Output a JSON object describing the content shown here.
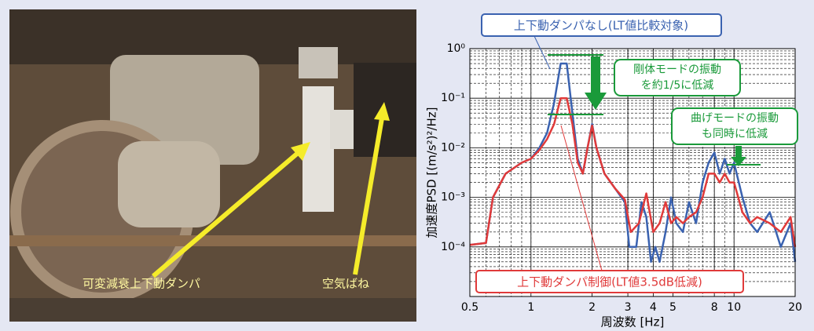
{
  "photo": {
    "labels": [
      "可変減衰上下動ダンパ",
      "空気ばね"
    ]
  },
  "chart_data": {
    "type": "line",
    "xlabel": "周波数 [Hz]",
    "ylabel": "加速度PSD [(m/s²)²/Hz]",
    "xlim": [
      0.5,
      20
    ],
    "ylim": [
      1e-05,
      1
    ],
    "log_x": true,
    "log_y": true,
    "grid": true,
    "xticks": [
      0.5,
      1,
      2,
      3,
      4,
      5,
      8,
      10,
      20
    ],
    "yticks": [
      {
        "value": 1,
        "label": "10⁰"
      },
      {
        "value": 0.1,
        "label": "10⁻¹"
      },
      {
        "value": 0.01,
        "label": "10⁻²"
      },
      {
        "value": 0.001,
        "label": "10⁻³"
      },
      {
        "value": 0.0001,
        "label": "10⁻⁴"
      }
    ],
    "series": [
      {
        "name": "上下動ダンパなし(LT値比較対象)",
        "color": "#3a62b0",
        "x": [
          0.5,
          0.6,
          0.65,
          0.75,
          0.9,
          1,
          1.1,
          1.2,
          1.3,
          1.4,
          1.5,
          1.6,
          1.7,
          1.8,
          1.9,
          2,
          2.1,
          2.3,
          2.6,
          2.9,
          3.05,
          3.3,
          3.5,
          3.7,
          3.9,
          4.1,
          4.3,
          4.6,
          4.9,
          5.2,
          5.6,
          6,
          6.5,
          7,
          7.5,
          8,
          8.5,
          9,
          9.5,
          10,
          11,
          12,
          13,
          15,
          17,
          19,
          20
        ],
        "values": [
          0.00011,
          0.00012,
          0.001,
          0.003,
          0.005,
          0.006,
          0.01,
          0.02,
          0.08,
          0.5,
          0.5,
          0.05,
          0.006,
          0.003,
          0.01,
          0.03,
          0.01,
          0.003,
          0.0015,
          0.0008,
          0.0001,
          0.0001,
          0.0008,
          0.0004,
          5e-05,
          0.0001,
          5e-05,
          0.0002,
          0.001,
          0.0003,
          0.0002,
          0.0008,
          0.0003,
          0.002,
          0.005,
          0.008,
          0.003,
          0.006,
          0.003,
          0.005,
          0.001,
          0.0003,
          0.0002,
          0.0005,
          0.0001,
          0.0003,
          5e-05
        ]
      },
      {
        "name": "上下動ダンパ制御(LT値3.5dB低減)",
        "color": "#e03a3a",
        "x": [
          0.5,
          0.6,
          0.65,
          0.75,
          0.9,
          1,
          1.1,
          1.2,
          1.3,
          1.4,
          1.5,
          1.6,
          1.7,
          1.8,
          1.9,
          2,
          2.1,
          2.3,
          2.6,
          2.9,
          3.1,
          3.4,
          3.7,
          4,
          4.3,
          4.6,
          4.9,
          5.2,
          5.6,
          6,
          6.5,
          7,
          7.5,
          8,
          8.5,
          9,
          9.5,
          10,
          11,
          12,
          13,
          15,
          17,
          19,
          20
        ],
        "values": [
          0.00011,
          0.00012,
          0.001,
          0.003,
          0.005,
          0.006,
          0.009,
          0.015,
          0.03,
          0.1,
          0.1,
          0.03,
          0.005,
          0.003,
          0.01,
          0.028,
          0.01,
          0.003,
          0.0015,
          0.0009,
          0.0002,
          0.0003,
          0.0012,
          0.0002,
          0.0003,
          0.0008,
          0.0003,
          0.0004,
          0.0003,
          0.0004,
          0.0005,
          0.001,
          0.003,
          0.003,
          0.002,
          0.003,
          0.002,
          0.002,
          0.0005,
          0.0003,
          0.0004,
          0.0003,
          0.0002,
          0.0004,
          0.0001
        ]
      }
    ],
    "annotations": [
      {
        "lines": [
          "剛体モードの振動",
          "を約1/5に低減"
        ]
      },
      {
        "lines": [
          "曲げモードの振動",
          "も同時に低減"
        ]
      }
    ]
  }
}
